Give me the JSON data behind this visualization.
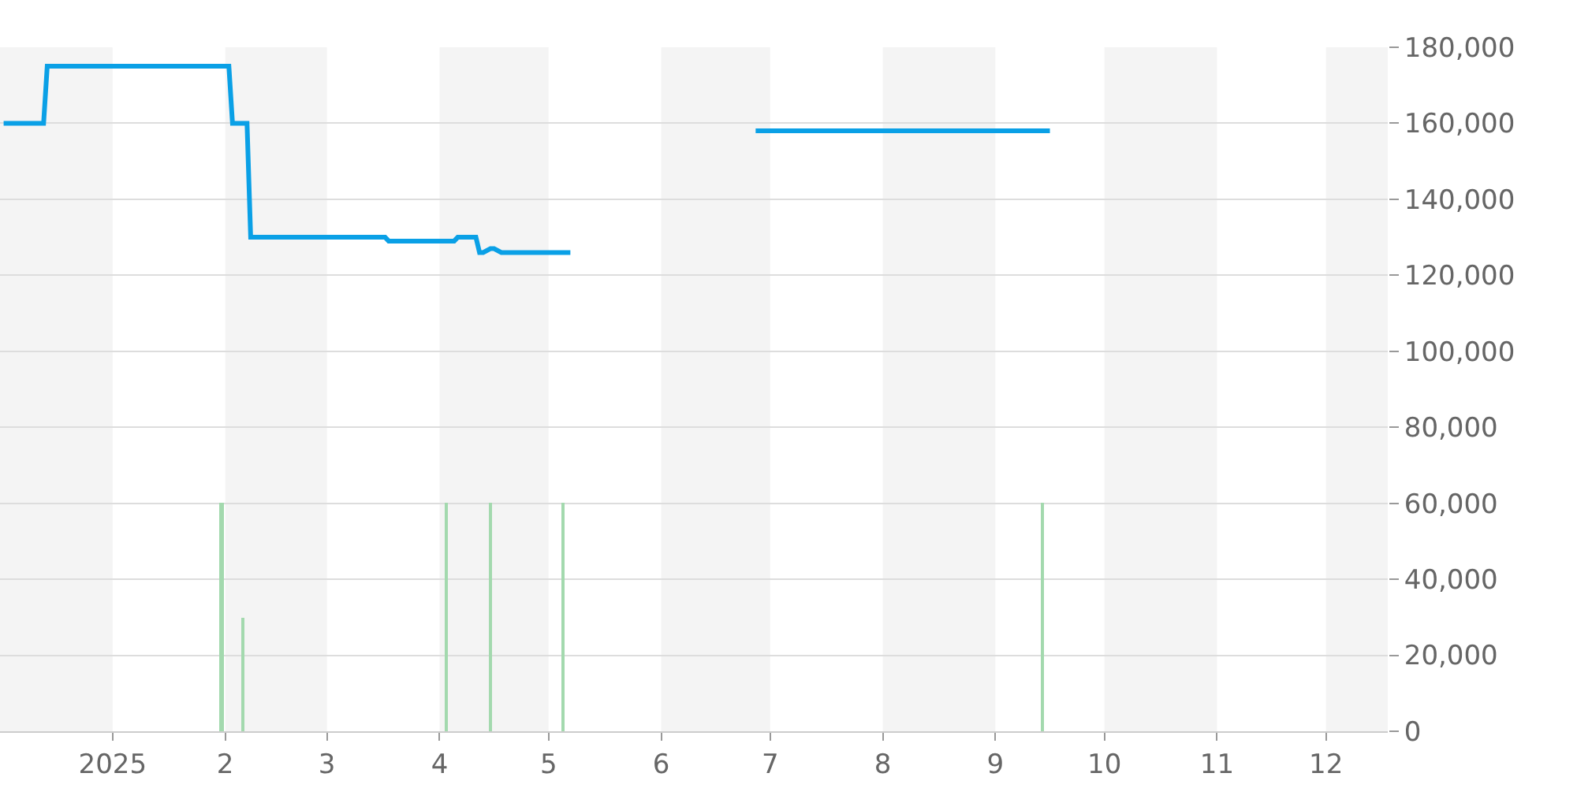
{
  "chart_data": {
    "type": "line",
    "series": [
      {
        "color": "#0aa0e6",
        "x": [
          "2024-12-02",
          "2024-12-13",
          "2024-12-14",
          "2025-02-02",
          "2025-02-03",
          "2025-02-07",
          "2025-02-08",
          "2025-03-17",
          "2025-03-18",
          "2025-04-05",
          "2025-04-06",
          "2025-04-11",
          "2025-04-12",
          "2025-04-13",
          "2025-04-15",
          "2025-04-16",
          "2025-04-18",
          "2025-05-07",
          "2025-05-08",
          "2025-06-27",
          "2025-09-16"
        ],
        "values": [
          160000,
          160000,
          175000,
          175000,
          160000,
          160000,
          130000,
          130000,
          129000,
          129000,
          130000,
          130000,
          126000,
          126000,
          127000,
          127000,
          126000,
          126000,
          null,
          158000,
          158000
        ]
      },
      {
        "type": "bar",
        "color": "#a3d9ae",
        "x": [
          "2025-01-31",
          "2025-02-06",
          "2025-04-03",
          "2025-04-15",
          "2025-05-05",
          "2025-09-14"
        ],
        "values": [
          60000,
          30000,
          60000,
          60000,
          60000,
          60000
        ]
      }
    ],
    "xlim": [
      "2024-12-01",
      "2025-12-18"
    ],
    "xticks": [
      {
        "value": "2025-01-01",
        "label": "2025"
      },
      {
        "value": "2025-02-01",
        "label": "2"
      },
      {
        "value": "2025-03-01",
        "label": "3"
      },
      {
        "value": "2025-04-01",
        "label": "4"
      },
      {
        "value": "2025-05-01",
        "label": "5"
      },
      {
        "value": "2025-06-01",
        "label": "6"
      },
      {
        "value": "2025-07-01",
        "label": "7"
      },
      {
        "value": "2025-08-01",
        "label": "8"
      },
      {
        "value": "2025-09-01",
        "label": "9"
      },
      {
        "value": "2025-10-01",
        "label": "10"
      },
      {
        "value": "2025-11-01",
        "label": "11"
      },
      {
        "value": "2025-12-01",
        "label": "12"
      }
    ],
    "ylim": [
      0,
      180000
    ],
    "yticks": [
      {
        "value": 0,
        "label": "0"
      },
      {
        "value": 20000,
        "label": "20,000"
      },
      {
        "value": 40000,
        "label": "40,000"
      },
      {
        "value": 60000,
        "label": "60,000"
      },
      {
        "value": 80000,
        "label": "80,000"
      },
      {
        "value": 100000,
        "label": "100,000"
      },
      {
        "value": 120000,
        "label": "120,000"
      },
      {
        "value": 140000,
        "label": "140,000"
      },
      {
        "value": 160000,
        "label": "160,000"
      },
      {
        "value": 180000,
        "label": "180,000"
      }
    ],
    "bands": [
      {
        "axis": "x",
        "from": "2024-12-01",
        "to": "2025-01-01",
        "color": "#f4f4f4"
      },
      {
        "axis": "x",
        "from": "2025-02-01",
        "to": "2025-03-01",
        "color": "#f4f4f4"
      },
      {
        "axis": "x",
        "from": "2025-04-01",
        "to": "2025-05-01",
        "color": "#f4f4f4"
      },
      {
        "axis": "x",
        "from": "2025-06-01",
        "to": "2025-07-01",
        "color": "#f4f4f4"
      },
      {
        "axis": "x",
        "from": "2025-08-01",
        "to": "2025-09-01",
        "color": "#f4f4f4"
      },
      {
        "axis": "x",
        "from": "2025-10-01",
        "to": "2025-11-01",
        "color": "#f4f4f4"
      },
      {
        "axis": "x",
        "from": "2025-12-01",
        "to": "2025-12-18",
        "color": "#f4f4f4"
      }
    ],
    "grid": "y",
    "legend": false,
    "marker": "none",
    "line_style": "solid"
  }
}
